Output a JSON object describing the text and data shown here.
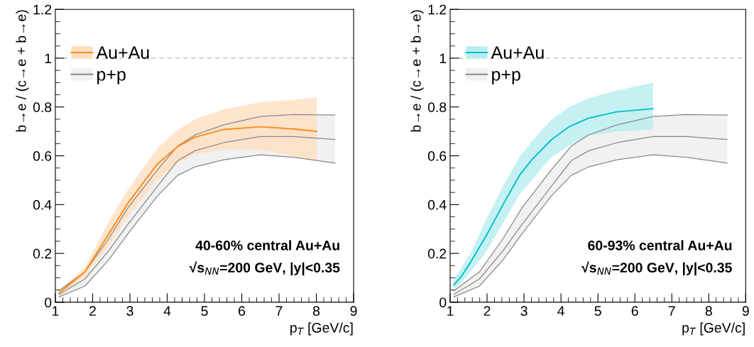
{
  "chart_data": [
    {
      "type": "line",
      "xlabel": "p$_{T}$ [GeV/c]",
      "ylabel": "b→e / (c→e + b→e)",
      "xlim": [
        1,
        9
      ],
      "xticks": [
        1,
        2,
        3,
        4,
        5,
        6,
        7,
        8,
        9
      ],
      "ylim": [
        0,
        1.2
      ],
      "yticks": [
        0,
        0.2,
        0.4,
        0.6,
        0.8,
        1,
        1.2
      ],
      "grid": false,
      "legend": "top left",
      "marker": "none",
      "line_style": "solid",
      "ref_lines": [
        {
          "axis": "y",
          "value": 1,
          "color": "#bbbbbb",
          "line_style": "dashed"
        }
      ],
      "annotations": [
        "40-60% central Au+Au",
        "√s$_{NN}$=200 GeV, |y|<0.35"
      ],
      "series": [
        {
          "color": "#888888",
          "x": [
            1.1,
            1.79,
            2.43,
            2.94,
            3.73,
            4.28,
            4.75,
            5.52,
            6.5,
            7.39,
            8.5
          ],
          "values": [
            0.022,
            0.066,
            0.173,
            0.279,
            0.434,
            0.52,
            0.555,
            0.584,
            0.604,
            0.594,
            0.57
          ]
        },
        {
          "color": "#888888",
          "x": [
            1.1,
            1.79,
            2.43,
            2.94,
            3.73,
            4.28,
            4.75,
            5.52,
            6.5,
            7.39,
            8.5
          ],
          "values": [
            0.047,
            0.124,
            0.26,
            0.386,
            0.541,
            0.64,
            0.686,
            0.727,
            0.761,
            0.769,
            0.767
          ]
        },
        {
          "name": "p+p",
          "color": "#888888",
          "x": [
            1.1,
            1.79,
            2.43,
            2.94,
            3.73,
            4.28,
            4.75,
            5.52,
            6.5,
            7.39,
            8.5
          ],
          "values": [
            0.032,
            0.095,
            0.211,
            0.318,
            0.473,
            0.58,
            0.621,
            0.654,
            0.679,
            0.679,
            0.667
          ],
          "lower": [
            0.022,
            0.066,
            0.173,
            0.279,
            0.434,
            0.52,
            0.555,
            0.584,
            0.604,
            0.594,
            0.57
          ],
          "upper": [
            0.047,
            0.124,
            0.26,
            0.386,
            0.541,
            0.64,
            0.686,
            0.727,
            0.761,
            0.769,
            0.767
          ]
        },
        {
          "name": "Au+Au",
          "color": "#ff8c1a",
          "x": [
            1.1,
            1.79,
            2.43,
            2.94,
            3.73,
            4.28,
            4.75,
            5.52,
            6.5,
            7.39,
            8.01
          ],
          "values": [
            0.037,
            0.124,
            0.279,
            0.405,
            0.565,
            0.638,
            0.677,
            0.708,
            0.719,
            0.71,
            0.7
          ],
          "lower": [
            0.027,
            0.105,
            0.23,
            0.35,
            0.5,
            0.57,
            0.607,
            0.626,
            0.625,
            0.6,
            0.58
          ],
          "upper": [
            0.051,
            0.143,
            0.33,
            0.46,
            0.63,
            0.706,
            0.75,
            0.79,
            0.82,
            0.83,
            0.84
          ]
        }
      ]
    },
    {
      "type": "line",
      "xlabel": "p$_{T}$ [GeV/c]",
      "ylabel": "b→e / (c→e + b→e)",
      "xlim": [
        1,
        9
      ],
      "xticks": [
        1,
        2,
        3,
        4,
        5,
        6,
        7,
        8,
        9
      ],
      "ylim": [
        0,
        1.2
      ],
      "yticks": [
        0,
        0.2,
        0.4,
        0.6,
        0.8,
        1,
        1.2
      ],
      "grid": false,
      "legend": "top left",
      "marker": "none",
      "line_style": "solid",
      "ref_lines": [
        {
          "axis": "y",
          "value": 1,
          "color": "#bbbbbb",
          "line_style": "dashed"
        }
      ],
      "annotations": [
        "60-93% central Au+Au",
        "√s$_{NN}$=200 GeV, |y|<0.35"
      ],
      "series": [
        {
          "color": "#888888",
          "x": [
            1.1,
            1.79,
            2.43,
            2.94,
            3.73,
            4.28,
            4.75,
            5.52,
            6.5,
            7.39,
            8.5
          ],
          "values": [
            0.022,
            0.066,
            0.173,
            0.279,
            0.434,
            0.52,
            0.555,
            0.584,
            0.604,
            0.594,
            0.57
          ]
        },
        {
          "color": "#888888",
          "x": [
            1.1,
            1.79,
            2.43,
            2.94,
            3.73,
            4.28,
            4.75,
            5.52,
            6.5,
            7.39,
            8.5
          ],
          "values": [
            0.047,
            0.124,
            0.26,
            0.386,
            0.541,
            0.64,
            0.686,
            0.727,
            0.761,
            0.769,
            0.767
          ]
        },
        {
          "name": "p+p",
          "color": "#888888",
          "x": [
            1.1,
            1.79,
            2.43,
            2.94,
            3.73,
            4.28,
            4.75,
            5.52,
            6.5,
            7.39,
            8.5
          ],
          "values": [
            0.032,
            0.095,
            0.211,
            0.318,
            0.473,
            0.58,
            0.621,
            0.654,
            0.679,
            0.679,
            0.667
          ],
          "lower": [
            0.022,
            0.066,
            0.173,
            0.279,
            0.434,
            0.52,
            0.555,
            0.584,
            0.604,
            0.594,
            0.57
          ],
          "upper": [
            0.047,
            0.124,
            0.26,
            0.386,
            0.541,
            0.64,
            0.686,
            0.727,
            0.761,
            0.769,
            0.767
          ]
        },
        {
          "name": "Au+Au",
          "color": "#00c0c8",
          "x": [
            1.1,
            1.3,
            1.55,
            2.0,
            2.45,
            2.89,
            3.21,
            3.75,
            4.23,
            4.74,
            5.5,
            6.49
          ],
          "values": [
            0.071,
            0.105,
            0.163,
            0.279,
            0.405,
            0.523,
            0.584,
            0.667,
            0.72,
            0.754,
            0.78,
            0.793
          ],
          "lower": [
            0.051,
            0.08,
            0.124,
            0.211,
            0.33,
            0.444,
            0.5,
            0.594,
            0.643,
            0.681,
            0.7,
            0.708
          ],
          "upper": [
            0.095,
            0.14,
            0.2,
            0.347,
            0.48,
            0.599,
            0.66,
            0.749,
            0.8,
            0.836,
            0.868,
            0.9
          ]
        }
      ]
    }
  ]
}
